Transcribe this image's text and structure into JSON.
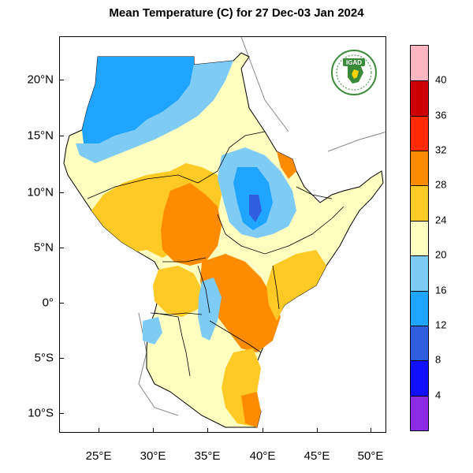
{
  "title": "Mean Temperature (C) for 27 Dec-03 Jan 2024",
  "logo": {
    "text": "IGAD",
    "icon": "igad-logo"
  },
  "lat_ticks": [
    "20°N",
    "15°N",
    "10°N",
    "5°N",
    "0°",
    "5°S",
    "10°S"
  ],
  "lon_ticks": [
    "25°E",
    "30°E",
    "35°E",
    "40°E",
    "45°E",
    "50°E"
  ],
  "colorbar": {
    "labels": [
      "40",
      "36",
      "32",
      "28",
      "24",
      "20",
      "16",
      "12",
      "8",
      "4"
    ],
    "colors": [
      "#ffb6c1",
      "#cc0000",
      "#ff2a00",
      "#ff8c00",
      "#ffc926",
      "#ffffc0",
      "#7ecbf5",
      "#1fa4ff",
      "#2f5fe0",
      "#1010ff",
      "#8c2be2"
    ]
  },
  "map_colors": {
    "cold": "#1fa4ff",
    "cool": "#7ecbf5",
    "mild": "#ffffc0",
    "warm": "#ffc926",
    "hot": "#ff8c00"
  }
}
